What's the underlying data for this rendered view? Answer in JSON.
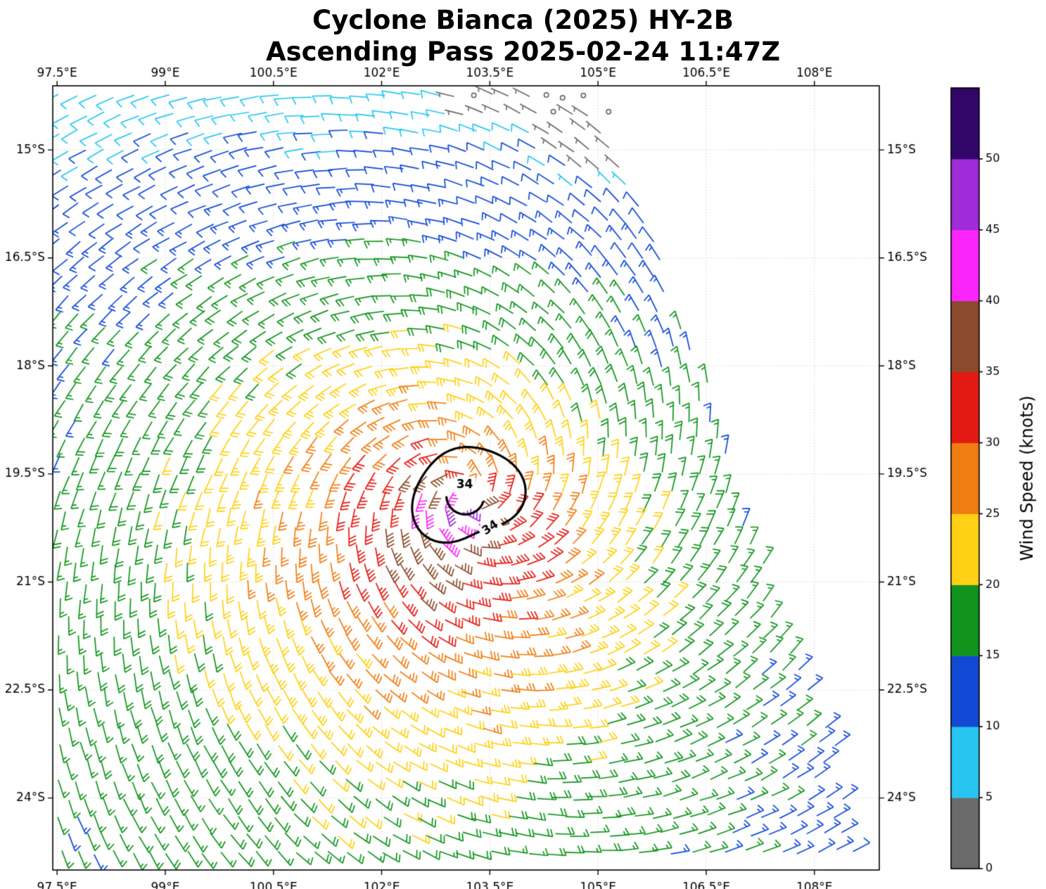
{
  "title": {
    "line1": "Cyclone Bianca (2025) HY-2B",
    "line2": "Ascending Pass 2025-02-24 11:47Z"
  },
  "chart_data": {
    "type": "wind_barbs",
    "title": "Cyclone Bianca (2025) HY-2B",
    "subtitle": "Ascending Pass 2025-02-24 11:47Z",
    "axes": {
      "x_tick_labels": [
        "97.5°E",
        "99°E",
        "100.5°E",
        "102°E",
        "103.5°E",
        "105°E",
        "106.5°E",
        "108°E"
      ],
      "x_tick_values": [
        97.5,
        99,
        100.5,
        102,
        103.5,
        105,
        106.5,
        108
      ],
      "xlim": [
        97.44,
        108.9
      ],
      "y_tick_labels": [
        "15°S",
        "16.5°S",
        "18°S",
        "19.5°S",
        "21°S",
        "22.5°S",
        "24°S"
      ],
      "y_tick_values": [
        -15,
        -16.5,
        -18,
        -19.5,
        -21,
        -22.5,
        -24
      ],
      "ylim": [
        -25.0,
        -14.11
      ],
      "grid": true,
      "labels_on_all_sides": true
    },
    "colorbar": {
      "label": "Wind Speed (knots)",
      "tick_values": [
        0,
        5,
        10,
        15,
        20,
        25,
        30,
        35,
        40,
        45,
        50
      ],
      "levels": [
        0,
        5,
        10,
        15,
        20,
        25,
        30,
        35,
        40,
        45,
        50,
        55
      ],
      "colors": [
        "#6b6b6b",
        "#26c6f0",
        "#1149d4",
        "#10941c",
        "#ffd013",
        "#f07d12",
        "#e31a12",
        "#8b4a2b",
        "#fa25fa",
        "#a02bd8",
        "#300668"
      ]
    },
    "cyclone": {
      "name": "Bianca",
      "center_lon": 103.18,
      "center_lat": -19.78,
      "vmax_kt": 42,
      "inflow_deg": 18,
      "asymmetry_amp": 0.22,
      "asymmetry_dir_deg": 235,
      "north_weaken": 0.3,
      "radial_profile": {
        "r_deg": [
          0,
          0.16,
          0.3,
          0.55,
          0.75,
          1.0,
          1.3,
          1.6,
          2.0,
          2.6,
          3.2,
          4.0,
          5.0,
          6.0,
          7.5,
          9.0,
          11.0
        ],
        "v_kt": [
          16,
          42,
          38.5,
          35.5,
          33.5,
          31.5,
          30,
          27.5,
          24.5,
          22,
          20,
          17.5,
          15.5,
          14,
          12.5,
          10.5,
          9
        ]
      }
    },
    "contour": {
      "level_kt": 34,
      "label": "34",
      "mean_radius_deg": 0.7
    },
    "barb_grid_spacing_deg": 0.25,
    "swath": {
      "right_edge_lon_at_14S": 105.0,
      "right_edge_slope": 0.345
    }
  }
}
